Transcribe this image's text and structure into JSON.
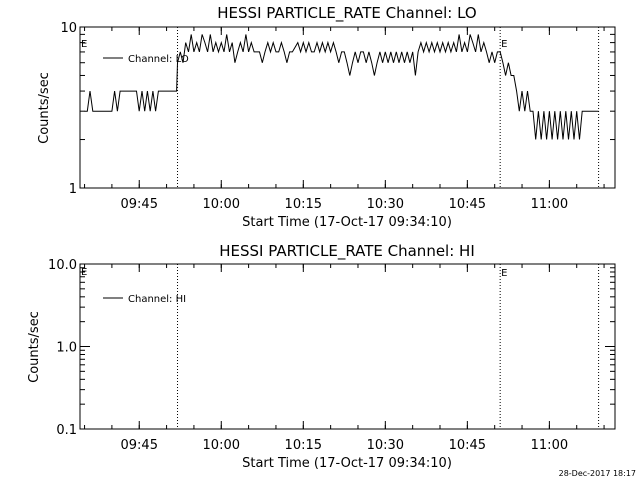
{
  "chart_data": [
    {
      "type": "line",
      "title": "HESSI PARTICLE_RATE Channel: LO",
      "xlabel": "Start Time (17-Oct-17 09:34:10)",
      "ylabel": "Counts/sec",
      "yscale": "log",
      "ylim": [
        1,
        10
      ],
      "ytick_labels": [
        "1",
        "10"
      ],
      "xlim": [
        "09:34:10",
        "11:12:00"
      ],
      "xtick_labels": [
        "09:45",
        "10:00",
        "10:15",
        "10:30",
        "10:45",
        "11:00"
      ],
      "legend": {
        "label": "Channel: LO",
        "placement": "top-left"
      },
      "markers": [
        {
          "time": "09:52:00",
          "label": ""
        },
        {
          "time": "10:51:00",
          "label": "E"
        },
        {
          "time": "11:09:00",
          "label": ""
        }
      ],
      "edge_marker": "E",
      "series": [
        {
          "name": "Channel: LO",
          "points": [
            [
              "09:35:00",
              3
            ],
            [
              "09:35:30",
              3
            ],
            [
              "09:36:00",
              4
            ],
            [
              "09:36:30",
              3
            ],
            [
              "09:37:00",
              3
            ],
            [
              "09:38:00",
              3
            ],
            [
              "09:39:00",
              3
            ],
            [
              "09:40:00",
              3
            ],
            [
              "09:40:30",
              4
            ],
            [
              "09:41:00",
              3
            ],
            [
              "09:41:30",
              4
            ],
            [
              "09:42:00",
              4
            ],
            [
              "09:43:00",
              4
            ],
            [
              "09:44:00",
              4
            ],
            [
              "09:44:30",
              4
            ],
            [
              "09:45:00",
              3
            ],
            [
              "09:45:30",
              4
            ],
            [
              "09:46:00",
              3
            ],
            [
              "09:46:30",
              4
            ],
            [
              "09:47:00",
              3
            ],
            [
              "09:47:30",
              4
            ],
            [
              "09:48:00",
              3
            ],
            [
              "09:48:30",
              4
            ],
            [
              "09:49:00",
              4
            ],
            [
              "09:50:00",
              4
            ],
            [
              "09:51:00",
              4
            ],
            [
              "09:51:50",
              4
            ],
            [
              "09:52:00",
              6
            ],
            [
              "09:52:30",
              7
            ],
            [
              "09:53:00",
              6
            ],
            [
              "09:53:30",
              8
            ],
            [
              "09:54:00",
              7
            ],
            [
              "09:54:30",
              9
            ],
            [
              "09:55:00",
              7
            ],
            [
              "09:55:30",
              8
            ],
            [
              "09:56:00",
              7
            ],
            [
              "09:56:30",
              9
            ],
            [
              "09:57:00",
              8
            ],
            [
              "09:57:30",
              7
            ],
            [
              "09:58:00",
              9
            ],
            [
              "09:58:30",
              7
            ],
            [
              "09:59:00",
              8
            ],
            [
              "09:59:30",
              7
            ],
            [
              "10:00:00",
              8
            ],
            [
              "10:00:30",
              7
            ],
            [
              "10:01:00",
              9
            ],
            [
              "10:01:30",
              7
            ],
            [
              "10:02:00",
              8
            ],
            [
              "10:02:30",
              6
            ],
            [
              "10:03:00",
              7
            ],
            [
              "10:03:30",
              8
            ],
            [
              "10:04:00",
              7
            ],
            [
              "10:04:30",
              9
            ],
            [
              "10:05:00",
              7
            ],
            [
              "10:05:30",
              8
            ],
            [
              "10:06:00",
              7
            ],
            [
              "10:07:00",
              7
            ],
            [
              "10:07:30",
              6
            ],
            [
              "10:08:00",
              7
            ],
            [
              "10:08:30",
              8
            ],
            [
              "10:09:00",
              7
            ],
            [
              "10:09:30",
              8
            ],
            [
              "10:10:00",
              7
            ],
            [
              "10:10:30",
              7
            ],
            [
              "10:11:00",
              8
            ],
            [
              "10:11:30",
              7
            ],
            [
              "10:12:00",
              6
            ],
            [
              "10:12:30",
              7
            ],
            [
              "10:13:00",
              7
            ],
            [
              "10:14:00",
              8
            ],
            [
              "10:14:30",
              7
            ],
            [
              "10:15:00",
              8
            ],
            [
              "10:15:30",
              7
            ],
            [
              "10:16:00",
              8
            ],
            [
              "10:16:30",
              7
            ],
            [
              "10:17:00",
              7
            ],
            [
              "10:17:30",
              8
            ],
            [
              "10:18:00",
              7
            ],
            [
              "10:18:30",
              8
            ],
            [
              "10:19:00",
              7
            ],
            [
              "10:19:30",
              8
            ],
            [
              "10:20:00",
              7
            ],
            [
              "10:20:30",
              8
            ],
            [
              "10:21:00",
              7
            ],
            [
              "10:21:30",
              6
            ],
            [
              "10:22:00",
              7
            ],
            [
              "10:22:30",
              7
            ],
            [
              "10:23:00",
              6
            ],
            [
              "10:23:30",
              5
            ],
            [
              "10:24:00",
              6
            ],
            [
              "10:24:30",
              7
            ],
            [
              "10:25:00",
              6
            ],
            [
              "10:25:30",
              7
            ],
            [
              "10:26:00",
              7
            ],
            [
              "10:26:30",
              6
            ],
            [
              "10:27:00",
              7
            ],
            [
              "10:27:30",
              6
            ],
            [
              "10:28:00",
              5
            ],
            [
              "10:28:30",
              6
            ],
            [
              "10:29:00",
              7
            ],
            [
              "10:29:30",
              6
            ],
            [
              "10:30:00",
              7
            ],
            [
              "10:30:30",
              6
            ],
            [
              "10:31:00",
              7
            ],
            [
              "10:31:30",
              6
            ],
            [
              "10:32:00",
              7
            ],
            [
              "10:32:30",
              6
            ],
            [
              "10:33:00",
              7
            ],
            [
              "10:33:30",
              6
            ],
            [
              "10:34:00",
              7
            ],
            [
              "10:34:30",
              6
            ],
            [
              "10:35:00",
              7
            ],
            [
              "10:35:30",
              5
            ],
            [
              "10:36:00",
              7
            ],
            [
              "10:36:30",
              8
            ],
            [
              "10:37:00",
              7
            ],
            [
              "10:37:30",
              8
            ],
            [
              "10:38:00",
              7
            ],
            [
              "10:38:30",
              8
            ],
            [
              "10:39:00",
              7
            ],
            [
              "10:39:30",
              8
            ],
            [
              "10:40:00",
              7
            ],
            [
              "10:40:30",
              8
            ],
            [
              "10:41:00",
              7
            ],
            [
              "10:41:30",
              8
            ],
            [
              "10:42:00",
              7
            ],
            [
              "10:42:30",
              8
            ],
            [
              "10:43:00",
              7
            ],
            [
              "10:43:30",
              9
            ],
            [
              "10:44:00",
              7
            ],
            [
              "10:44:30",
              8
            ],
            [
              "10:45:00",
              7
            ],
            [
              "10:45:30",
              9
            ],
            [
              "10:46:00",
              8
            ],
            [
              "10:46:30",
              7
            ],
            [
              "10:47:00",
              9
            ],
            [
              "10:47:30",
              7
            ],
            [
              "10:48:00",
              8
            ],
            [
              "10:48:30",
              7
            ],
            [
              "10:49:00",
              6
            ],
            [
              "10:49:30",
              7
            ],
            [
              "10:50:00",
              6
            ],
            [
              "10:50:30",
              7
            ],
            [
              "10:51:00",
              7
            ],
            [
              "10:51:30",
              6
            ],
            [
              "10:52:00",
              5
            ],
            [
              "10:52:30",
              6
            ],
            [
              "10:53:00",
              5
            ],
            [
              "10:53:30",
              5
            ],
            [
              "10:54:00",
              4
            ],
            [
              "10:54:30",
              3
            ],
            [
              "10:55:00",
              4
            ],
            [
              "10:55:30",
              3
            ],
            [
              "10:56:00",
              4
            ],
            [
              "10:56:30",
              3
            ],
            [
              "10:57:00",
              3
            ],
            [
              "10:57:30",
              2
            ],
            [
              "10:58:00",
              3
            ],
            [
              "10:58:30",
              2
            ],
            [
              "10:59:00",
              3
            ],
            [
              "10:59:30",
              2
            ],
            [
              "11:00:00",
              3
            ],
            [
              "11:00:30",
              2
            ],
            [
              "11:01:00",
              3
            ],
            [
              "11:01:30",
              2
            ],
            [
              "11:02:00",
              3
            ],
            [
              "11:02:30",
              2
            ],
            [
              "11:03:00",
              3
            ],
            [
              "11:03:30",
              2
            ],
            [
              "11:04:00",
              3
            ],
            [
              "11:04:30",
              2
            ],
            [
              "11:05:00",
              3
            ],
            [
              "11:05:30",
              2
            ],
            [
              "11:06:00",
              3
            ],
            [
              "11:06:30",
              3
            ],
            [
              "11:07:00",
              3
            ],
            [
              "11:08:00",
              3
            ],
            [
              "11:09:00",
              3
            ]
          ]
        }
      ]
    },
    {
      "type": "line",
      "title": "HESSI PARTICLE_RATE Channel: HI",
      "xlabel": "Start Time (17-Oct-17 09:34:10)",
      "ylabel": "Counts/sec",
      "yscale": "log",
      "ylim": [
        0.1,
        10
      ],
      "ytick_labels": [
        "0.1",
        "1.0",
        "10.0"
      ],
      "xlim": [
        "09:34:10",
        "11:12:00"
      ],
      "xtick_labels": [
        "09:45",
        "10:00",
        "10:15",
        "10:30",
        "10:45",
        "11:00"
      ],
      "legend": {
        "label": "Channel: HI",
        "placement": "top-left"
      },
      "markers": [
        {
          "time": "09:52:00",
          "label": ""
        },
        {
          "time": "10:51:00",
          "label": "E"
        },
        {
          "time": "11:09:00",
          "label": ""
        }
      ],
      "edge_marker": "E",
      "series": [
        {
          "name": "Channel: HI",
          "points": []
        }
      ]
    }
  ],
  "footer": {
    "timestamp": "28-Dec-2017 18:17"
  }
}
